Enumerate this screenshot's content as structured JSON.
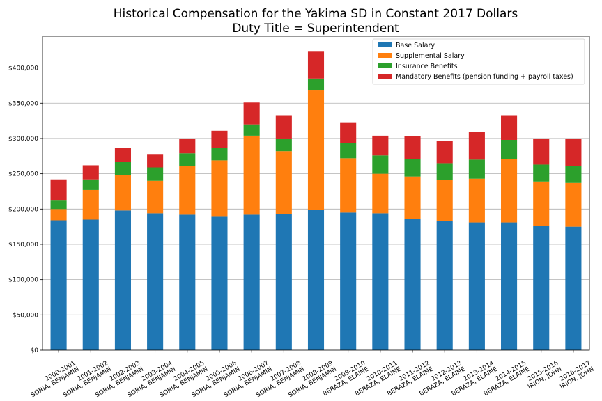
{
  "chart_data": {
    "type": "bar",
    "stacked": true,
    "title": "Historical Compensation for the Yakima SD in Constant 2017 Dollars",
    "subtitle": "Duty Title = Superintendent",
    "xlabel": "",
    "ylabel": "",
    "ylim": [
      0,
      445000
    ],
    "yticks": [
      0,
      50000,
      100000,
      150000,
      200000,
      250000,
      300000,
      350000,
      400000
    ],
    "ytick_labels": [
      "$0",
      "$50,000",
      "$100,000",
      "$150,000",
      "$200,000",
      "$250,000",
      "$300,000",
      "$350,000",
      "$400,000"
    ],
    "grid": "horizontal",
    "legend_position": "top-right",
    "categories": [
      [
        "2000-2001",
        "SORIA, BENJAMIN"
      ],
      [
        "2001-2002",
        "SORIA, BENJAMIN"
      ],
      [
        "2002-2003",
        "SORIA, BENJAMIN"
      ],
      [
        "2003-2004",
        "SORIA, BENJAMIN"
      ],
      [
        "2004-2005",
        "SORIA, BENJAMIN"
      ],
      [
        "2005-2006",
        "SORIA, BENJAMIN"
      ],
      [
        "2006-2007",
        "SORIA, BENJAMIN"
      ],
      [
        "2007-2008",
        "SORIA, BENJAMIN"
      ],
      [
        "2008-2009",
        "SORIA, BENJAMIN"
      ],
      [
        "2009-2010",
        "BERAZA, ELAINE"
      ],
      [
        "2010-2011",
        "BERAZA, ELAINE"
      ],
      [
        "2011-2012",
        "BERAZA, ELAINE"
      ],
      [
        "2012-2013",
        "BERAZA, ELAINE"
      ],
      [
        "2013-2014",
        "BERAZA, ELAINE"
      ],
      [
        "2014-2015",
        "BERAZA, ELAINE"
      ],
      [
        "2015-2016",
        "IRION, JOHN"
      ],
      [
        "2016-2017",
        "IRION, JOHN"
      ]
    ],
    "series": [
      {
        "name": "Base Salary",
        "color": "#1f77b4",
        "values": [
          184000,
          185000,
          198000,
          194000,
          192000,
          190000,
          192000,
          193000,
          199000,
          195000,
          194000,
          186000,
          183000,
          181000,
          181000,
          176000,
          175000
        ]
      },
      {
        "name": "Supplemental Salary",
        "color": "#ff7f0e",
        "values": [
          16000,
          42000,
          50000,
          46000,
          69000,
          79000,
          112000,
          89000,
          170000,
          77000,
          56000,
          60000,
          58000,
          62000,
          90000,
          63000,
          62000
        ]
      },
      {
        "name": "Insurance Benefits",
        "color": "#2ca02c",
        "values": [
          13000,
          15000,
          19000,
          19000,
          18000,
          18000,
          16000,
          18000,
          16000,
          22000,
          26000,
          25000,
          24000,
          27000,
          27000,
          24000,
          24000
        ]
      },
      {
        "name": "Mandatory Benefits (pension funding + payroll taxes)",
        "color": "#d62728",
        "values": [
          29000,
          20000,
          20000,
          19000,
          21000,
          24000,
          31000,
          33000,
          39000,
          29000,
          28000,
          32000,
          32000,
          39000,
          35000,
          37000,
          39000
        ]
      }
    ]
  }
}
